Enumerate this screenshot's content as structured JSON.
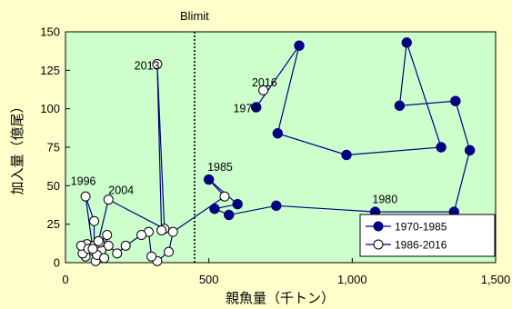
{
  "chart_data": {
    "type": "scatter",
    "title": "",
    "xlabel": "親魚量（千トン）",
    "ylabel": "加入量（億尾）",
    "xlim": [
      0,
      1500
    ],
    "ylim": [
      0,
      150
    ],
    "xticks": [
      0,
      500,
      1000,
      1500
    ],
    "xtick_labels": [
      "0",
      "500",
      "1,000",
      "1,500"
    ],
    "yticks": [
      0,
      25,
      50,
      75,
      100,
      125,
      150
    ],
    "ytick_labels": [
      "0",
      "25",
      "50",
      "75",
      "100",
      "125",
      "150"
    ],
    "grid": false,
    "plot_background": "#ccffcc",
    "page_background": "#ffffcc",
    "legend_position": "bottom-right",
    "reference_line": {
      "label": "Blimit",
      "x": 450,
      "style": "dotted"
    },
    "annotations": [
      {
        "text": "2013",
        "x": 240,
        "y": 128
      },
      {
        "text": "2016",
        "x": 650,
        "y": 117
      },
      {
        "text": "1970",
        "x": 585,
        "y": 100
      },
      {
        "text": "1985",
        "x": 495,
        "y": 62
      },
      {
        "text": "1996",
        "x": 18,
        "y": 53
      },
      {
        "text": "2004",
        "x": 150,
        "y": 47
      },
      {
        "text": "1980",
        "x": 1070,
        "y": 41
      }
    ],
    "series": [
      {
        "name": "1970-1985",
        "marker": "filled-circle",
        "color": "#000080",
        "points": [
          {
            "x": 665,
            "y": 101
          },
          {
            "x": 815,
            "y": 141
          },
          {
            "x": 740,
            "y": 84
          },
          {
            "x": 980,
            "y": 70
          },
          {
            "x": 1310,
            "y": 75
          },
          {
            "x": 1190,
            "y": 143
          },
          {
            "x": 1165,
            "y": 102
          },
          {
            "x": 1360,
            "y": 105
          },
          {
            "x": 1410,
            "y": 73
          },
          {
            "x": 1355,
            "y": 33
          },
          {
            "x": 1080,
            "y": 33
          },
          {
            "x": 735,
            "y": 37
          },
          {
            "x": 570,
            "y": 31
          },
          {
            "x": 520,
            "y": 35
          },
          {
            "x": 600,
            "y": 38
          },
          {
            "x": 500,
            "y": 54
          }
        ]
      },
      {
        "name": "1986-2016",
        "marker": "open-circle",
        "color": "#000000",
        "points": [
          {
            "x": 555,
            "y": 43
          },
          {
            "x": 375,
            "y": 20
          },
          {
            "x": 360,
            "y": 7
          },
          {
            "x": 320,
            "y": 1
          },
          {
            "x": 300,
            "y": 4
          },
          {
            "x": 290,
            "y": 20
          },
          {
            "x": 265,
            "y": 18
          },
          {
            "x": 210,
            "y": 11
          },
          {
            "x": 180,
            "y": 6
          },
          {
            "x": 150,
            "y": 11
          },
          {
            "x": 125,
            "y": 8
          },
          {
            "x": 90,
            "y": 8
          },
          {
            "x": 70,
            "y": 4
          },
          {
            "x": 60,
            "y": 6
          },
          {
            "x": 75,
            "y": 12
          },
          {
            "x": 55,
            "y": 11
          },
          {
            "x": 80,
            "y": 9
          },
          {
            "x": 105,
            "y": 1
          },
          {
            "x": 110,
            "y": 5
          },
          {
            "x": 120,
            "y": 13
          },
          {
            "x": 145,
            "y": 18
          },
          {
            "x": 135,
            "y": 3
          },
          {
            "x": 100,
            "y": 11
          },
          {
            "x": 100,
            "y": 27
          },
          {
            "x": 70,
            "y": 43
          },
          {
            "x": 95,
            "y": 9
          },
          {
            "x": 115,
            "y": 14
          },
          {
            "x": 150,
            "y": 41
          },
          {
            "x": 345,
            "y": 22
          },
          {
            "x": 320,
            "y": 129
          },
          {
            "x": 335,
            "y": 21
          }
        ],
        "label_points": [
          {
            "x": 690,
            "y": 112
          }
        ]
      }
    ]
  }
}
